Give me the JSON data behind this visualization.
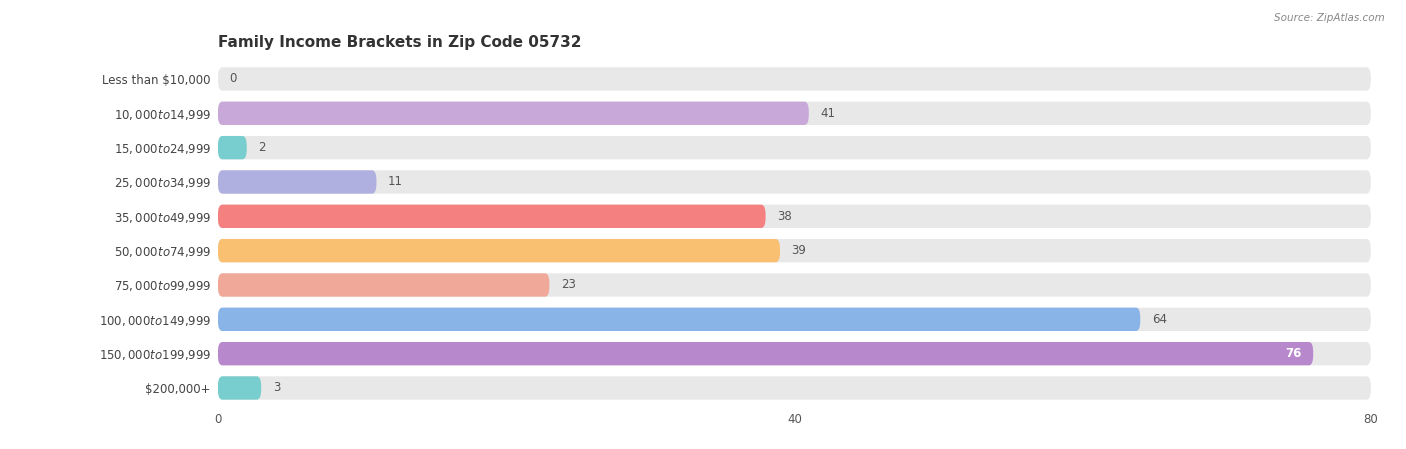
{
  "title": "Family Income Brackets in Zip Code 05732",
  "source": "Source: ZipAtlas.com",
  "categories": [
    "Less than $10,000",
    "$10,000 to $14,999",
    "$15,000 to $24,999",
    "$25,000 to $34,999",
    "$35,000 to $49,999",
    "$50,000 to $74,999",
    "$75,000 to $99,999",
    "$100,000 to $149,999",
    "$150,000 to $199,999",
    "$200,000+"
  ],
  "values": [
    0,
    41,
    2,
    11,
    38,
    39,
    23,
    64,
    76,
    3
  ],
  "bar_colors": [
    "#aacce8",
    "#c8a8d8",
    "#78cece",
    "#b0b0e0",
    "#f48080",
    "#f8c070",
    "#f0a898",
    "#88b4e8",
    "#b888cc",
    "#78cece"
  ],
  "xlim": [
    0,
    80
  ],
  "xticks": [
    0,
    40,
    80
  ],
  "bg_color": "#ffffff",
  "row_bg_even": "#f0f0f0",
  "row_bg_odd": "#f8f8f8",
  "bar_track_color": "#e8e8e8",
  "title_fontsize": 11,
  "label_fontsize": 8.5,
  "value_fontsize": 8.5,
  "value_inside_threshold": 68
}
